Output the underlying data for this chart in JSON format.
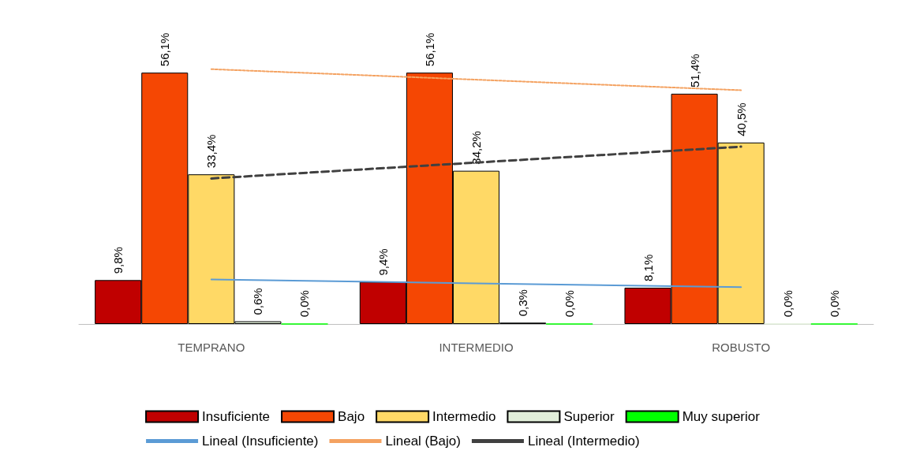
{
  "chart_data": {
    "type": "bar",
    "categories": [
      "TEMPRANO",
      "INTERMEDIO",
      "ROBUSTO"
    ],
    "series": [
      {
        "name": "Insuficiente",
        "color": "#c00000",
        "values": [
          9.8,
          9.4,
          8.1
        ],
        "value_labels": [
          "9,8%",
          "9,4%",
          "8,1%"
        ]
      },
      {
        "name": "Bajo",
        "color": "#f54703",
        "values": [
          56.1,
          56.1,
          51.4
        ],
        "value_labels": [
          "56,1%",
          "56,1%",
          "51,4%"
        ]
      },
      {
        "name": "Intermedio",
        "color": "#ffd966",
        "values": [
          33.4,
          34.2,
          40.5
        ],
        "value_labels": [
          "33,4%",
          "34,2%",
          "40,5%"
        ]
      },
      {
        "name": "Superior",
        "color": "#e2efda",
        "values": [
          0.6,
          0.3,
          0.0
        ],
        "value_labels": [
          "0,6%",
          "0,3%",
          "0,0%"
        ]
      },
      {
        "name": "Muy superior",
        "color": "#00ff00",
        "values": [
          0.0,
          0.0,
          0.0
        ],
        "value_labels": [
          "0,0%",
          "0,0%",
          "0,0%"
        ]
      },
      {
        "name": "Lineal (Insuficiente)",
        "type": "line",
        "color": "#5b9bd5",
        "line_style": "solid",
        "x": [
          "TEMPRANO",
          "INTERMEDIO",
          "ROBUSTO"
        ],
        "values": [
          9.93,
          9.08,
          8.23
        ]
      },
      {
        "name": "Lineal (Bajo)",
        "type": "line",
        "color": "#f4a261",
        "line_style": "dotted",
        "x": [
          "TEMPRANO",
          "INTERMEDIO",
          "ROBUSTO"
        ],
        "values": [
          56.88,
          54.53,
          52.18
        ]
      },
      {
        "name": "Lineal (Intermedio)",
        "type": "line",
        "color": "#404040",
        "line_style": "dashed",
        "x": [
          "TEMPRANO",
          "INTERMEDIO",
          "ROBUSTO"
        ],
        "values": [
          32.48,
          36.03,
          39.58
        ]
      }
    ],
    "grid": false,
    "legend": "bottom",
    "marker": "none"
  }
}
